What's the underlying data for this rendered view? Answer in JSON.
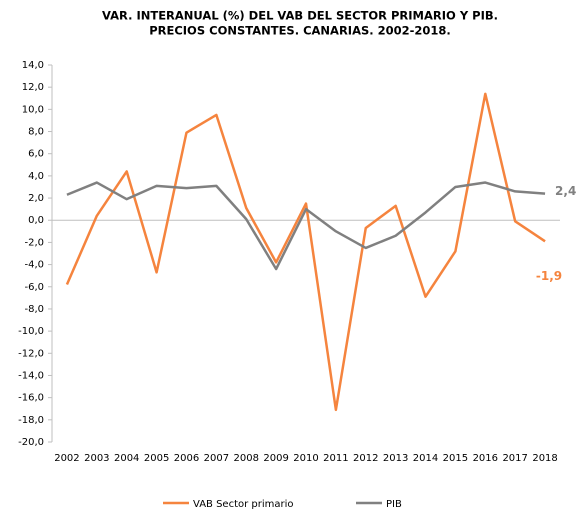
{
  "chart_data": {
    "type": "line",
    "title": [
      "VAR. INTERANUAL (%) DEL VAB DEL SECTOR PRIMARIO Y PIB.",
      "PRECIOS CONSTANTES. CANARIAS. 2002-2018."
    ],
    "categories": [
      "2002",
      "2003",
      "2004",
      "2005",
      "2006",
      "2007",
      "2008",
      "2009",
      "2010",
      "2011",
      "2012",
      "2013",
      "2014",
      "2015",
      "2016",
      "2017",
      "2018"
    ],
    "series": [
      {
        "name": "VAB Sector primario",
        "color": "#f5843e",
        "values": [
          -5.8,
          0.4,
          4.4,
          -4.7,
          7.9,
          9.5,
          1.1,
          -3.8,
          1.5,
          -17.1,
          -0.7,
          1.3,
          -6.9,
          -2.8,
          11.4,
          -0.1,
          -1.9
        ],
        "value_labels": [
          null,
          null,
          null,
          null,
          null,
          null,
          null,
          null,
          null,
          null,
          null,
          null,
          null,
          null,
          null,
          null,
          "-1,9"
        ]
      },
      {
        "name": "PIB",
        "color": "#808080",
        "values": [
          2.3,
          3.4,
          1.9,
          3.1,
          2.9,
          3.1,
          0.1,
          -4.4,
          1.0,
          -1.0,
          -2.5,
          -1.4,
          0.7,
          3.0,
          3.4,
          2.6,
          2.4
        ],
        "value_labels": [
          null,
          null,
          null,
          null,
          null,
          null,
          null,
          null,
          null,
          null,
          null,
          null,
          null,
          null,
          null,
          null,
          "2,4"
        ]
      }
    ],
    "ylim": [
      -20,
      14
    ],
    "yticks": [
      {
        "value": -20,
        "label": "-20,0"
      },
      {
        "value": -18,
        "label": "-18,0"
      },
      {
        "value": -16,
        "label": "-16,0"
      },
      {
        "value": -14,
        "label": "-14,0"
      },
      {
        "value": -12,
        "label": "-12,0"
      },
      {
        "value": -10,
        "label": "-10,0"
      },
      {
        "value": -8,
        "label": "-8,0"
      },
      {
        "value": -6,
        "label": "-6,0"
      },
      {
        "value": -4,
        "label": "-4,0"
      },
      {
        "value": -2,
        "label": "-2,0"
      },
      {
        "value": 0,
        "label": "0,0"
      },
      {
        "value": 2,
        "label": "2,0"
      },
      {
        "value": 4,
        "label": "4,0"
      },
      {
        "value": 6,
        "label": "6,0"
      },
      {
        "value": 8,
        "label": "8,0"
      },
      {
        "value": 10,
        "label": "10,0"
      },
      {
        "value": 12,
        "label": "12,0"
      },
      {
        "value": 14,
        "label": "14,0"
      }
    ],
    "grid": false,
    "legend": "bottom"
  }
}
